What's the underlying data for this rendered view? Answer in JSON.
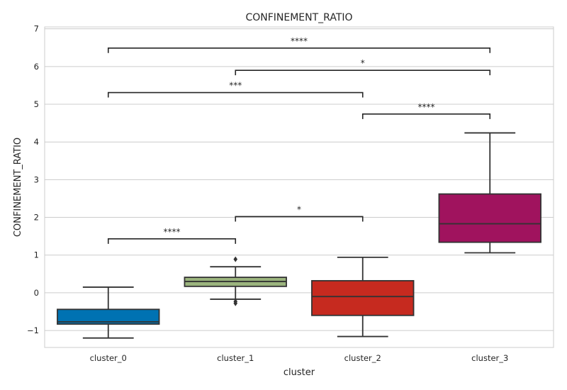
{
  "chart_data": {
    "type": "box",
    "title": "CONFINEMENT_RATIO",
    "xlabel": "cluster",
    "ylabel": "CONFINEMENT_RATIO",
    "ylim": [
      -1.45,
      7.05
    ],
    "yticks": [
      -1,
      0,
      1,
      2,
      3,
      4,
      5,
      6,
      7
    ],
    "ytick_labels": [
      "−1",
      "0",
      "1",
      "2",
      "3",
      "4",
      "5",
      "6",
      "7"
    ],
    "grid": true,
    "categories": [
      "cluster_0",
      "cluster_1",
      "cluster_2",
      "cluster_3"
    ],
    "boxes": [
      {
        "category": "cluster_0",
        "whisker_low": -1.2,
        "q1": -0.83,
        "median": -0.77,
        "q3": -0.44,
        "whisker_high": 0.15,
        "outliers": [],
        "color": "#0072b2"
      },
      {
        "category": "cluster_1",
        "whisker_low": -0.17,
        "q1": 0.17,
        "median": 0.3,
        "q3": 0.41,
        "whisker_high": 0.69,
        "outliers": [
          0.89,
          -0.23,
          -0.28
        ],
        "color": "#9bb47e"
      },
      {
        "category": "cluster_2",
        "whisker_low": -1.16,
        "q1": -0.6,
        "median": -0.1,
        "q3": 0.32,
        "whisker_high": 0.94,
        "outliers": [],
        "color": "#c62a1f"
      },
      {
        "category": "cluster_3",
        "whisker_low": 1.06,
        "q1": 1.34,
        "median": 1.83,
        "q3": 2.62,
        "whisker_high": 4.24,
        "outliers": [],
        "color": "#a0135e"
      }
    ],
    "annotations": [
      {
        "from": "cluster_0",
        "to": "cluster_1",
        "y": 1.43,
        "label": "****"
      },
      {
        "from": "cluster_1",
        "to": "cluster_2",
        "y": 2.02,
        "label": "*"
      },
      {
        "from": "cluster_2",
        "to": "cluster_3",
        "y": 4.74,
        "label": "****"
      },
      {
        "from": "cluster_0",
        "to": "cluster_2",
        "y": 5.31,
        "label": "***"
      },
      {
        "from": "cluster_1",
        "to": "cluster_3",
        "y": 5.9,
        "label": "*"
      },
      {
        "from": "cluster_0",
        "to": "cluster_3",
        "y": 6.49,
        "label": "****"
      }
    ],
    "colors": {
      "grid": "#cccccc",
      "frame": "#cccccc",
      "box_edge": "#333333",
      "annotation": "#262626"
    }
  }
}
